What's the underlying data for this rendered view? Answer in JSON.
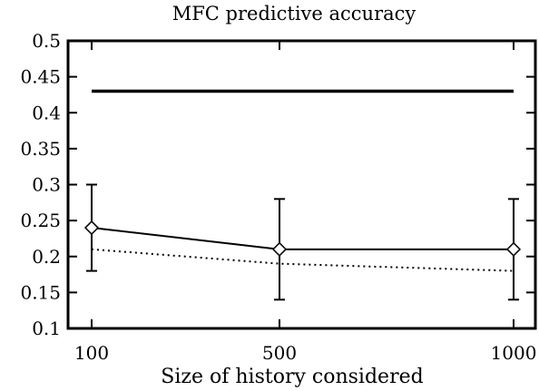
{
  "chart_data": {
    "type": "line",
    "title": "MFC predictive accuracy",
    "xlabel": "Size of history considered",
    "ylabel": "",
    "x": [
      100,
      500,
      1000
    ],
    "x_tick_labels": [
      "100",
      "500",
      "1000"
    ],
    "ylim": [
      0.1,
      0.5
    ],
    "y_ticks": [
      0.1,
      0.15,
      0.2,
      0.25,
      0.3,
      0.35,
      0.4,
      0.45,
      0.5
    ],
    "y_tick_labels": [
      "0.1",
      "0.15",
      "0.2",
      "0.25",
      "0.3",
      "0.35",
      "0.4",
      "0.45",
      "0.5"
    ],
    "grid": false,
    "legend": "none",
    "series": [
      {
        "values": [
          0.43,
          0.43,
          0.43
        ],
        "style": "thick-solid",
        "color": "#000000"
      },
      {
        "values": [
          0.24,
          0.21,
          0.21
        ],
        "error_low": [
          0.18,
          0.14,
          0.14
        ],
        "error_high": [
          0.3,
          0.28,
          0.28
        ],
        "marker": "diamond",
        "style": "solid",
        "color": "#000000"
      },
      {
        "values": [
          0.21,
          0.19,
          0.18
        ],
        "style": "dotted",
        "color": "#000000"
      }
    ]
  }
}
